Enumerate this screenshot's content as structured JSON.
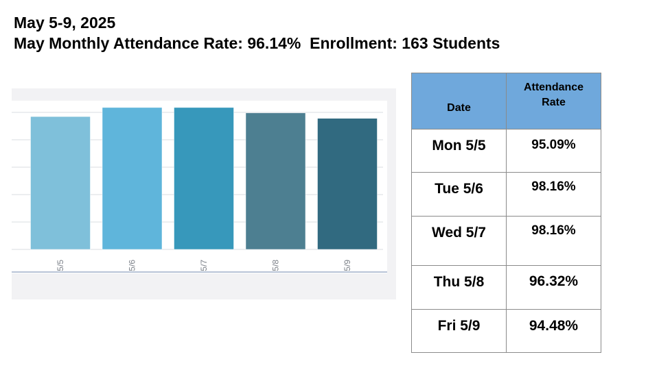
{
  "header": {
    "title": "May 5-9, 2025",
    "subtitle": "May Monthly Attendance Rate: 96.14%  Enrollment: 163 Students"
  },
  "table": {
    "headers": [
      "Date",
      "Attendance Rate"
    ],
    "rows": [
      {
        "date": "Mon 5/5",
        "rate": "95.09%"
      },
      {
        "date": "Tue 5/6",
        "rate": "98.16%"
      },
      {
        "date": "Wed 5/7",
        "rate": "98.16%"
      },
      {
        "date": "Thu 5/8",
        "rate": "96.32%"
      },
      {
        "date": "Fri 5/9",
        "rate": "94.48%"
      }
    ]
  },
  "chart_data": {
    "type": "bar",
    "categories": [
      "5/5",
      "5/6",
      "5/7",
      "5/8",
      "5/9"
    ],
    "values": [
      95.09,
      98.16,
      98.16,
      96.32,
      94.48
    ],
    "colors": [
      "#7fc0da",
      "#5fb5db",
      "#3798bb",
      "#4d7f91",
      "#316a80"
    ],
    "ylim": [
      50,
      100
    ],
    "grid": true,
    "title": "",
    "xlabel": "",
    "ylabel": ""
  },
  "colors": {
    "table_header": "#6fa8dc",
    "chart_background": "#f2f2f4",
    "gridline": "#d9dce2",
    "baseline": "#b7c3d6"
  }
}
